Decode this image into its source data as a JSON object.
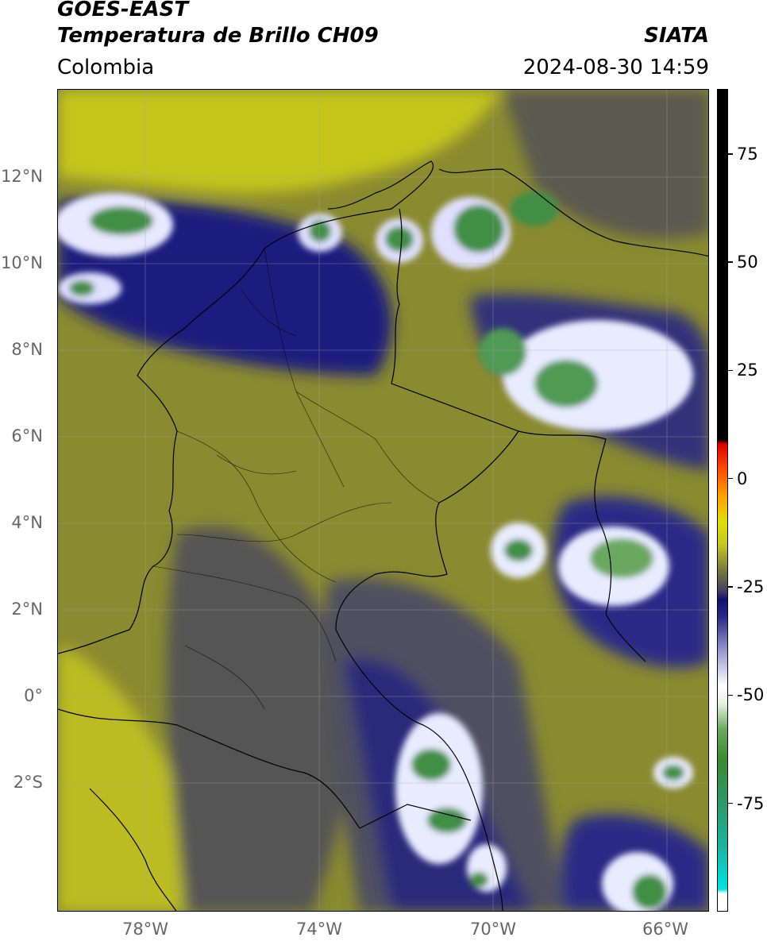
{
  "header": {
    "satellite": "GOES-EAST",
    "product": "Temperatura de Brillo CH09",
    "brand": "SIATA",
    "region": "Colombia",
    "datetime": "2024-08-30 14:59"
  },
  "axes": {
    "latitudes": [
      {
        "label": "12°N",
        "value": 12
      },
      {
        "label": "10°N",
        "value": 10
      },
      {
        "label": "8°N",
        "value": 8
      },
      {
        "label": "6°N",
        "value": 6
      },
      {
        "label": "4°N",
        "value": 4
      },
      {
        "label": "2°N",
        "value": 2
      },
      {
        "label": "0°",
        "value": 0
      },
      {
        "label": "2°S",
        "value": -2
      }
    ],
    "longitudes": [
      {
        "label": "78°W",
        "value": -78
      },
      {
        "label": "74°W",
        "value": -74
      },
      {
        "label": "70°W",
        "value": -70
      },
      {
        "label": "66°W",
        "value": -66
      }
    ],
    "lat_range": [
      -5.0,
      14.0
    ],
    "lon_range": [
      -80.0,
      -65.0
    ]
  },
  "colorbar": {
    "ticks": [
      {
        "label": "75",
        "value": 75
      },
      {
        "label": "50",
        "value": 50
      },
      {
        "label": "25",
        "value": 25
      },
      {
        "label": "0",
        "value": 0
      },
      {
        "label": "-25",
        "value": -25
      },
      {
        "label": "-50",
        "value": -50
      },
      {
        "label": "-75",
        "value": -75
      }
    ],
    "range": [
      -100,
      90
    ],
    "stops": [
      {
        "value": -100,
        "color": "#ffffff"
      },
      {
        "value": -96,
        "color": "#ffffff"
      },
      {
        "value": -95,
        "color": "#00e5e5"
      },
      {
        "value": -85,
        "color": "#1ab3a0"
      },
      {
        "value": -75,
        "color": "#2a9a6a"
      },
      {
        "value": -65,
        "color": "#3b8a30"
      },
      {
        "value": -58,
        "color": "#6aa860"
      },
      {
        "value": -52,
        "color": "#e8f2e0"
      },
      {
        "value": -48,
        "color": "#ffffff"
      },
      {
        "value": -40,
        "color": "#9a9ad0"
      },
      {
        "value": -32,
        "color": "#2a2a8a"
      },
      {
        "value": -28,
        "color": "#101070"
      },
      {
        "value": -26,
        "color": "#404060"
      },
      {
        "value": -22,
        "color": "#707040"
      },
      {
        "value": -15,
        "color": "#c8c820"
      },
      {
        "value": -10,
        "color": "#e0e000"
      },
      {
        "value": -4,
        "color": "#ffa000"
      },
      {
        "value": 3,
        "color": "#ff4000"
      },
      {
        "value": 8,
        "color": "#e00000"
      },
      {
        "value": 9,
        "color": "#000000"
      },
      {
        "value": 90,
        "color": "#000000"
      }
    ]
  },
  "map_colors": {
    "background_yellow": "#c5c51a",
    "olive": "#8e8e2c",
    "gray_olive": "#6a6a44",
    "slate": "#4b4b5c",
    "navy": "#1e1e7e",
    "white": "#ffffff",
    "green": "#3f8f45"
  }
}
